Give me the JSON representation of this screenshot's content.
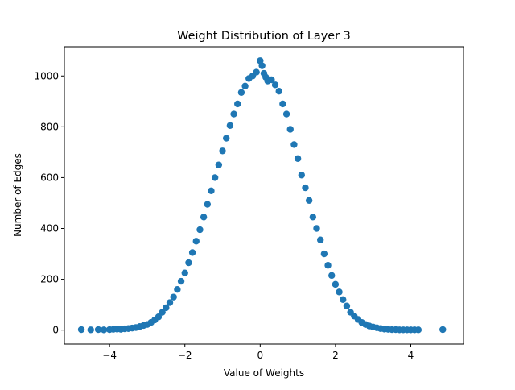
{
  "chart_data": {
    "type": "scatter",
    "title": "Weight Distribution of Layer 3",
    "xlabel": "Value of Weights",
    "ylabel": "Number of Edges",
    "xlim": [
      -5.2,
      5.4
    ],
    "ylim": [
      -55,
      1115
    ],
    "xticks": [
      -4,
      -2,
      0,
      2,
      4
    ],
    "xtick_labels": [
      "−4",
      "−2",
      "0",
      "2",
      "4"
    ],
    "yticks": [
      0,
      200,
      400,
      600,
      800,
      1000
    ],
    "ytick_labels": [
      "0",
      "200",
      "400",
      "600",
      "800",
      "1000"
    ],
    "grid": false,
    "marker_color": "#1f77b4",
    "series": [
      {
        "x": [
          -4.75,
          -4.5,
          -4.3,
          -4.15,
          -4.0,
          -3.9,
          -3.8,
          -3.7,
          -3.6,
          -3.5,
          -3.4,
          -3.3,
          -3.2,
          -3.1,
          -3.0,
          -2.9,
          -2.8,
          -2.7,
          -2.6,
          -2.5,
          -2.4,
          -2.3,
          -2.2,
          -2.1,
          -2.0,
          -1.9,
          -1.8,
          -1.7,
          -1.6,
          -1.5,
          -1.4,
          -1.3,
          -1.2,
          -1.1,
          -1.0,
          -0.9,
          -0.8,
          -0.7,
          -0.6,
          -0.5,
          -0.4,
          -0.3,
          -0.2,
          -0.1,
          0.0,
          0.05,
          0.1,
          0.15,
          0.2,
          0.3,
          0.4,
          0.5,
          0.6,
          0.7,
          0.8,
          0.9,
          1.0,
          1.1,
          1.2,
          1.3,
          1.4,
          1.5,
          1.6,
          1.7,
          1.8,
          1.9,
          2.0,
          2.1,
          2.2,
          2.3,
          2.4,
          2.5,
          2.6,
          2.7,
          2.8,
          2.9,
          3.0,
          3.1,
          3.2,
          3.3,
          3.4,
          3.5,
          3.6,
          3.7,
          3.8,
          3.9,
          4.0,
          4.1,
          4.2,
          4.85
        ],
        "y": [
          2,
          1,
          2,
          1,
          2,
          3,
          4,
          3,
          5,
          6,
          8,
          10,
          14,
          18,
          22,
          30,
          40,
          52,
          70,
          88,
          108,
          130,
          160,
          192,
          225,
          265,
          305,
          350,
          395,
          445,
          495,
          548,
          600,
          650,
          705,
          755,
          805,
          850,
          890,
          935,
          960,
          990,
          1000,
          1015,
          1060,
          1040,
          1010,
          995,
          980,
          985,
          965,
          940,
          890,
          850,
          790,
          730,
          675,
          610,
          560,
          510,
          445,
          400,
          355,
          300,
          255,
          215,
          180,
          150,
          120,
          95,
          70,
          55,
          42,
          30,
          22,
          16,
          12,
          9,
          6,
          4,
          3,
          2,
          2,
          1,
          1,
          1,
          1,
          1,
          1,
          2
        ]
      }
    ]
  }
}
